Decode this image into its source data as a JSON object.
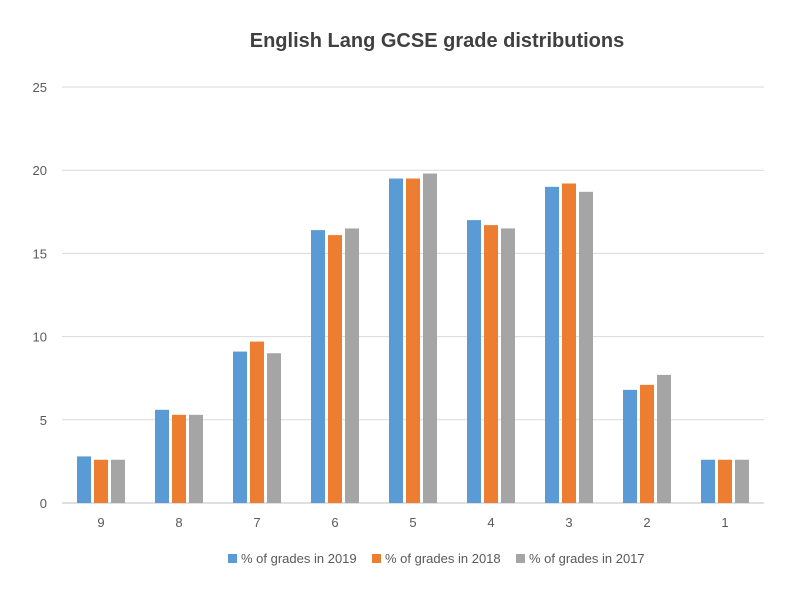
{
  "chart_data": {
    "type": "bar",
    "title": "English Lang GCSE grade distributions",
    "xlabel": "",
    "ylabel": "",
    "categories": [
      "9",
      "8",
      "7",
      "6",
      "5",
      "4",
      "3",
      "2",
      "1"
    ],
    "ylim": [
      0,
      25
    ],
    "yticks": [
      0,
      5,
      10,
      15,
      20,
      25
    ],
    "ytick_labels": [
      "0",
      "5",
      "10",
      "15",
      "20",
      "25"
    ],
    "grid": true,
    "legend_position": "bottom",
    "series": [
      {
        "name": "% of grades in 2019",
        "color": "#5b9bd5",
        "values": [
          2.8,
          5.6,
          9.1,
          16.4,
          19.5,
          17.0,
          19.0,
          6.8,
          2.6
        ]
      },
      {
        "name": "% of grades in 2018",
        "color": "#ed7d31",
        "values": [
          2.6,
          5.3,
          9.7,
          16.1,
          19.5,
          16.7,
          19.2,
          7.1,
          2.6
        ]
      },
      {
        "name": "% of grades in 2017",
        "color": "#a5a5a5",
        "values": [
          2.6,
          5.3,
          9.0,
          16.5,
          19.8,
          16.5,
          18.7,
          7.7,
          2.6
        ]
      }
    ]
  }
}
